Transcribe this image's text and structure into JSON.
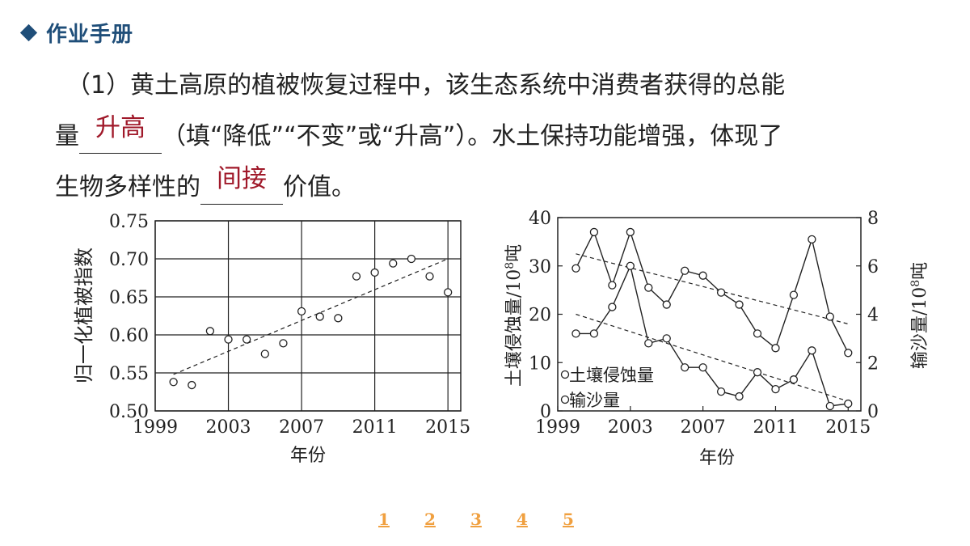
{
  "header": {
    "title": "作业手册"
  },
  "question": {
    "line1": "（1）黄土高原的植被恢复过程中，该生态系统中消费者获得的总能",
    "line2_pre": "量",
    "answer1": "升高",
    "line2_post": "（填“降低”“不变”或“升高”）。水土保持功能增强，体现了",
    "line3_pre": "生物多样性的",
    "answer2": "间接",
    "line3_post": "价值。"
  },
  "nav": {
    "pages": [
      "1",
      "2",
      "3",
      "4",
      "5"
    ]
  },
  "chart_data": [
    {
      "type": "scatter",
      "title": "",
      "xlabel": "年份",
      "ylabel": "归一化植被指数",
      "xlim": [
        1999,
        2015.7
      ],
      "ylim": [
        0.5,
        0.75
      ],
      "xticks": [
        "1999",
        "2003",
        "2007",
        "2011",
        "2015"
      ],
      "yticks": [
        "0.50",
        "0.55",
        "0.60",
        "0.65",
        "0.70",
        "0.75"
      ],
      "grid": true,
      "points": [
        {
          "x": 2000,
          "y": 0.538
        },
        {
          "x": 2001,
          "y": 0.534
        },
        {
          "x": 2002,
          "y": 0.605
        },
        {
          "x": 2003,
          "y": 0.594
        },
        {
          "x": 2004,
          "y": 0.594
        },
        {
          "x": 2005,
          "y": 0.575
        },
        {
          "x": 2006,
          "y": 0.589
        },
        {
          "x": 2007,
          "y": 0.631
        },
        {
          "x": 2008,
          "y": 0.624
        },
        {
          "x": 2009,
          "y": 0.622
        },
        {
          "x": 2010,
          "y": 0.677
        },
        {
          "x": 2011,
          "y": 0.682
        },
        {
          "x": 2012,
          "y": 0.694
        },
        {
          "x": 2013,
          "y": 0.7
        },
        {
          "x": 2014,
          "y": 0.677
        },
        {
          "x": 2015,
          "y": 0.656
        }
      ],
      "trend": {
        "x": [
          2000,
          2015
        ],
        "y": [
          0.548,
          0.7
        ]
      }
    },
    {
      "type": "line",
      "title": "",
      "xlabel": "年份",
      "ylabel_left": "土壤侵蚀量/10⁸吨",
      "ylabel_left_parts": [
        "土壤侵蚀量/10",
        "8",
        "吨"
      ],
      "ylabel_right": "输沙量/10⁸吨",
      "ylabel_right_parts": [
        "输沙量/10",
        "8",
        "吨"
      ],
      "xlim": [
        1999,
        2015.7
      ],
      "ylim_left": [
        0,
        40
      ],
      "ylim_right": [
        0,
        8
      ],
      "xticks": [
        "1999",
        "2003",
        "2007",
        "2011",
        "2015"
      ],
      "yticks_left": [
        "0",
        "10",
        "20",
        "30",
        "40"
      ],
      "yticks_right": [
        "0",
        "2",
        "4",
        "6",
        "8"
      ],
      "grid": false,
      "legend": {
        "position": "bottom-left",
        "entries": [
          "土壤侵蚀量",
          "输沙量"
        ]
      },
      "series": [
        {
          "name": "土壤侵蚀量",
          "axis": "left",
          "x": [
            2000,
            2001,
            2002,
            2003,
            2004,
            2005,
            2006,
            2007,
            2008,
            2009,
            2010,
            2011,
            2012,
            2013,
            2014,
            2015
          ],
          "values": [
            29.5,
            37,
            26,
            37,
            25.5,
            22,
            29,
            28,
            24.5,
            22,
            16,
            13,
            24,
            35.5,
            19.5,
            12
          ]
        },
        {
          "name": "输沙量",
          "axis": "right",
          "x": [
            2000,
            2001,
            2002,
            2003,
            2004,
            2005,
            2006,
            2007,
            2008,
            2009,
            2010,
            2011,
            2012,
            2013,
            2014,
            2015
          ],
          "values": [
            3.2,
            3.2,
            4.3,
            6.0,
            2.8,
            3.0,
            1.8,
            1.8,
            0.8,
            0.6,
            1.6,
            0.9,
            1.3,
            2.5,
            0.2,
            0.3
          ]
        }
      ],
      "trends": [
        {
          "axis": "left",
          "x": [
            2000,
            2015
          ],
          "y": [
            32.5,
            18.0
          ]
        },
        {
          "axis": "left",
          "x": [
            2000,
            2015
          ],
          "y": [
            20.0,
            2.0
          ]
        }
      ]
    }
  ]
}
